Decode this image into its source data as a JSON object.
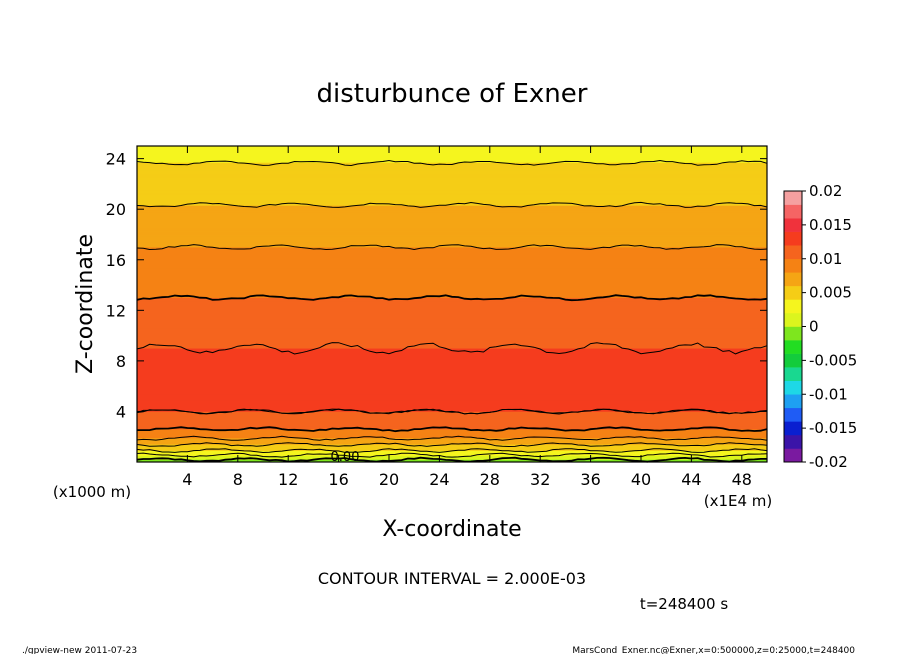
{
  "chart_data": {
    "type": "heatmap",
    "title": "disturbunce of Exner",
    "xlabel": "X-coordinate",
    "ylabel": "Z-coordinate",
    "x_unit": "(x1E4 m)",
    "z_unit": "(x1000 m)",
    "xlim": [
      0,
      50
    ],
    "ylim": [
      0,
      25
    ],
    "x_ticks": [
      "4",
      "8",
      "12",
      "16",
      "20",
      "24",
      "28",
      "32",
      "36",
      "40",
      "44",
      "48"
    ],
    "y_ticks": [
      "4",
      "8",
      "12",
      "16",
      "20",
      "24"
    ],
    "colorbar": {
      "ticks": [
        "0.02",
        "0.015",
        "0.01",
        "0.005",
        "0",
        "-0.005",
        "-0.01",
        "-0.015",
        "-0.02"
      ],
      "range": [
        -0.02,
        0.02
      ],
      "colors": [
        "#7a1aa0",
        "#3b14a8",
        "#0a1fd0",
        "#1f5cf5",
        "#1ea0f2",
        "#1ed8e6",
        "#19d890",
        "#13cc3c",
        "#22dd22",
        "#7ee61e",
        "#dcf51e",
        "#f5f51e",
        "#f5cd16",
        "#f5a514",
        "#f58214",
        "#f5641e",
        "#f53c1e",
        "#f0323c",
        "#f56464",
        "#f5a0a0"
      ]
    },
    "profile": {
      "z": [
        0,
        1,
        2,
        3,
        4,
        6,
        8,
        10,
        12,
        14,
        16,
        18,
        20,
        22,
        24,
        25
      ],
      "value": [
        -0.001,
        0.0045,
        0.0085,
        0.011,
        0.012,
        0.0128,
        0.0125,
        0.0115,
        0.0105,
        0.0095,
        0.0085,
        0.0075,
        0.0062,
        0.005,
        0.0038,
        0.0032
      ]
    },
    "contour_interval": "2.000E-03",
    "contour_label": "0.00",
    "grid": false
  },
  "annotations": {
    "contour_interval_text": "CONTOUR INTERVAL = 2.000E-03",
    "time_text": "t=248400 s",
    "footer_left": "./gpview-new   2011-07-23",
    "footer_right": "MarsCond_Exner.nc@Exner,x=0:500000,z=0:25000,t=248400"
  }
}
